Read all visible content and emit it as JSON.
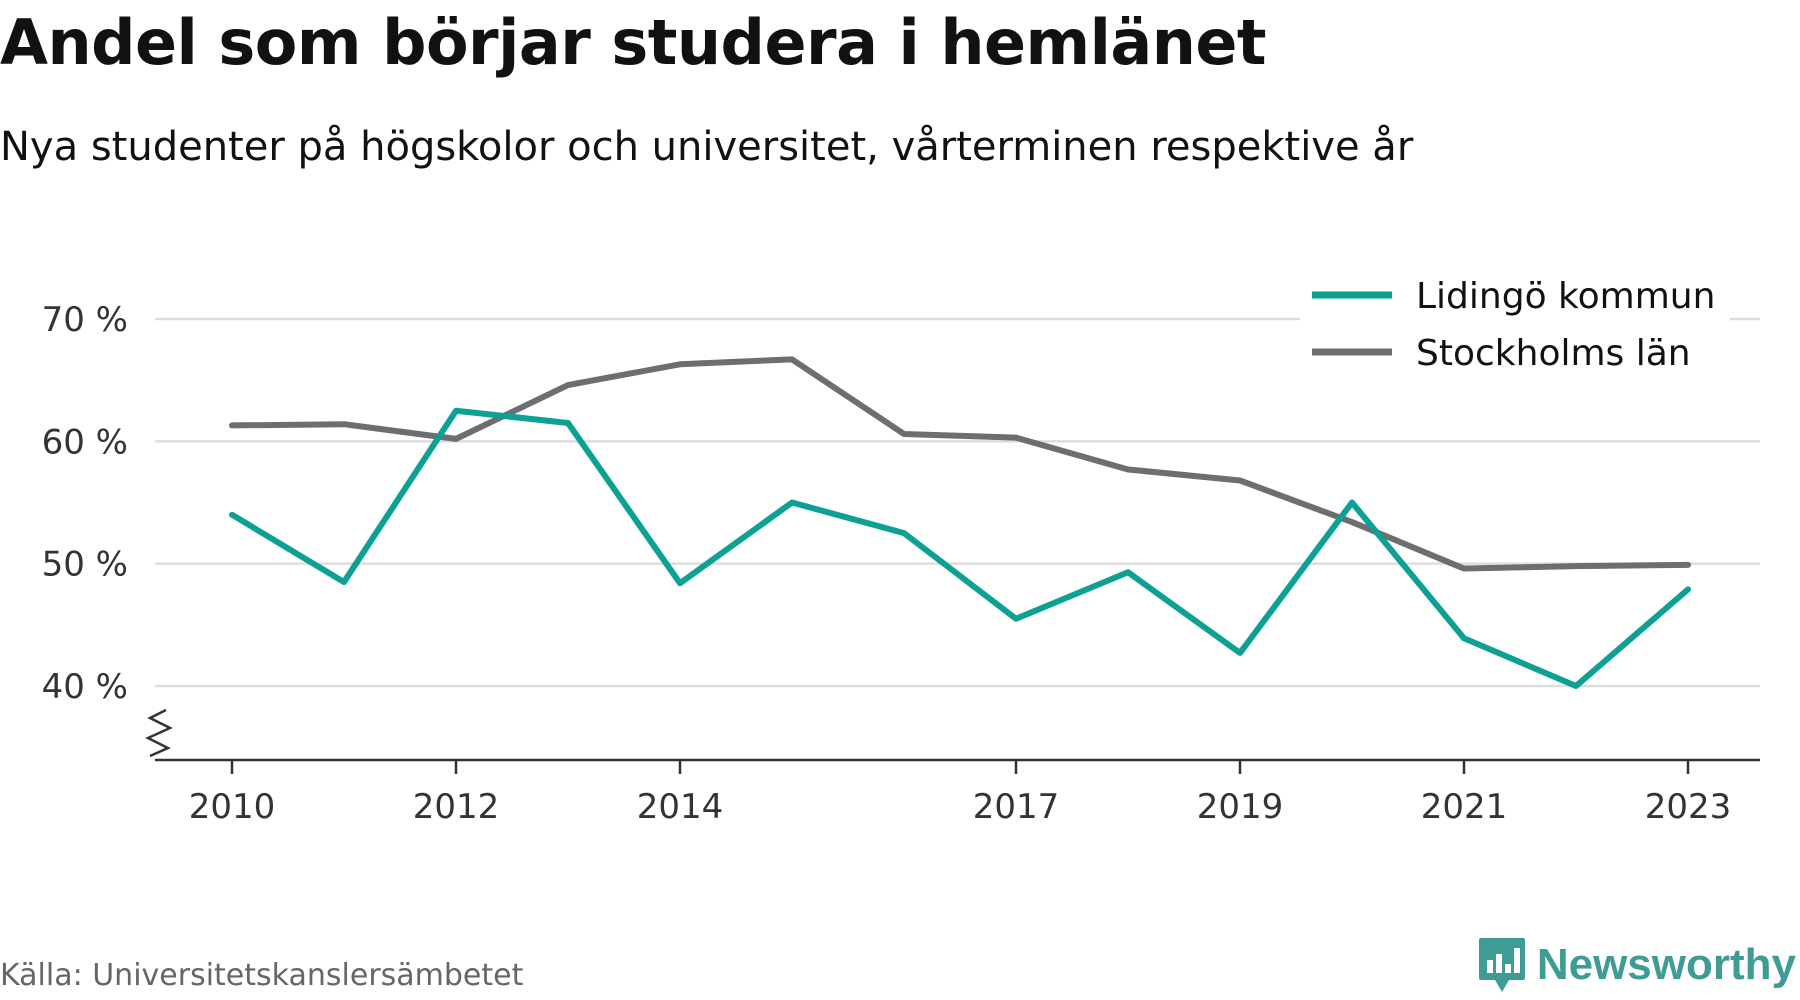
{
  "header": {
    "title": "Andel som börjar studera i hemlänet",
    "subtitle": "Nya studenter på högskolor och universitet, vårterminen respektive år"
  },
  "footer": {
    "source": "Källa: Universitetskanslersämbetet",
    "brand": "Newsworthy",
    "brand_icon": "bar-chart-badge-icon"
  },
  "colors": {
    "lidingo": "#0ca194",
    "stockholm": "#6e6d72",
    "grid": "#dddddd",
    "axis": "#333333",
    "brand": "#3f9c95"
  },
  "chart_data": {
    "type": "line",
    "x": [
      2010,
      2011,
      2012,
      2013,
      2014,
      2015,
      2016,
      2017,
      2018,
      2019,
      2020,
      2021,
      2022,
      2023
    ],
    "xticks": [
      "2010",
      "2012",
      "2014",
      "2017",
      "2019",
      "2021",
      "2023"
    ],
    "yticks": [
      "40 %",
      "50 %",
      "60 %",
      "70 %"
    ],
    "ylim": [
      34,
      72
    ],
    "grid": true,
    "axis_break": true,
    "legend_position": "top-right",
    "series": [
      {
        "name": "Lidingö kommun",
        "values": [
          54.0,
          48.5,
          62.5,
          61.5,
          48.4,
          55.0,
          52.5,
          45.5,
          49.3,
          42.7,
          55.0,
          43.9,
          40.0,
          47.9
        ]
      },
      {
        "name": "Stockholms län",
        "values": [
          61.3,
          61.4,
          60.2,
          64.6,
          66.3,
          66.7,
          60.6,
          60.3,
          57.7,
          56.8,
          53.4,
          49.6,
          49.8,
          49.9
        ]
      }
    ]
  }
}
